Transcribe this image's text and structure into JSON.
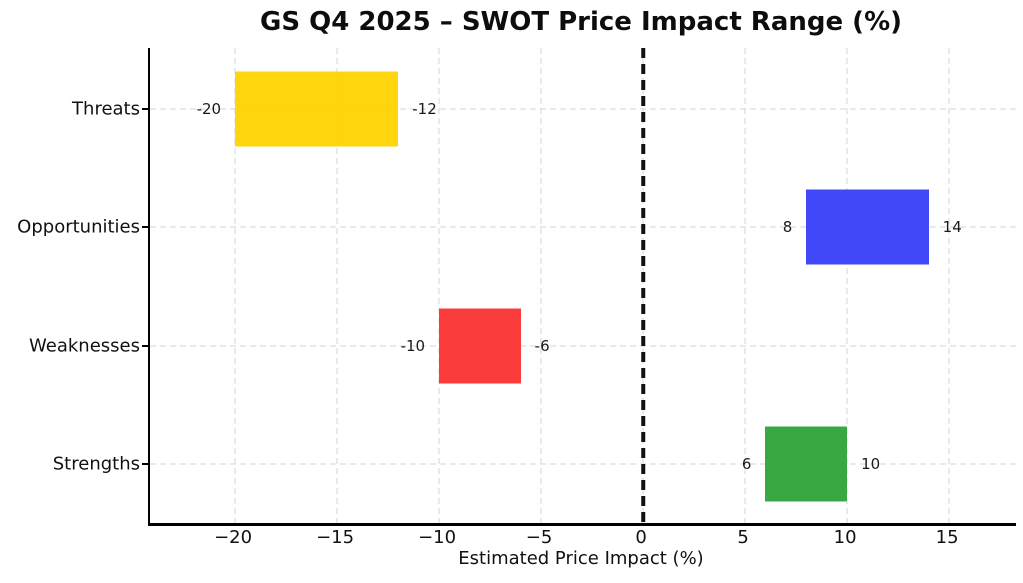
{
  "title": "GS Q4 2025 – SWOT Price Impact Range (%)",
  "chart_data": {
    "type": "bar",
    "subtype": "horizontal-range-bars",
    "title": "GS Q4 2025 – SWOT Price Impact Range (%)",
    "xlabel": "Estimated Price Impact (%)",
    "ylabel": "",
    "categories": [
      "Threats",
      "Opportunities",
      "Weaknesses",
      "Strengths"
    ],
    "ranges": [
      {
        "category": "Threats",
        "start": -20,
        "end": -12,
        "color": "#FFD400",
        "start_label": "-20",
        "end_label": "-12"
      },
      {
        "category": "Opportunities",
        "start": 8,
        "end": 14,
        "color": "#373EFA",
        "start_label": "8",
        "end_label": "14"
      },
      {
        "category": "Weaknesses",
        "start": -10,
        "end": -6,
        "color": "#FA3132",
        "start_label": "-10",
        "end_label": "-6"
      },
      {
        "category": "Strengths",
        "start": 6,
        "end": 10,
        "color": "#2EA23A",
        "start_label": "6",
        "end_label": "10"
      }
    ],
    "xticks": [
      -20,
      -15,
      -10,
      -5,
      0,
      5,
      10,
      15
    ],
    "xtick_labels": [
      "−20",
      "−15",
      "−10",
      "−5",
      "0",
      "5",
      "10",
      "15"
    ],
    "xlim": [
      -24.17,
      18.28
    ],
    "zero_line": {
      "x": 0,
      "style": "dashed",
      "color": "#111111"
    },
    "grid": {
      "visible": true,
      "style": "dashed",
      "color": "#d4d4d4"
    },
    "legend": "none"
  }
}
